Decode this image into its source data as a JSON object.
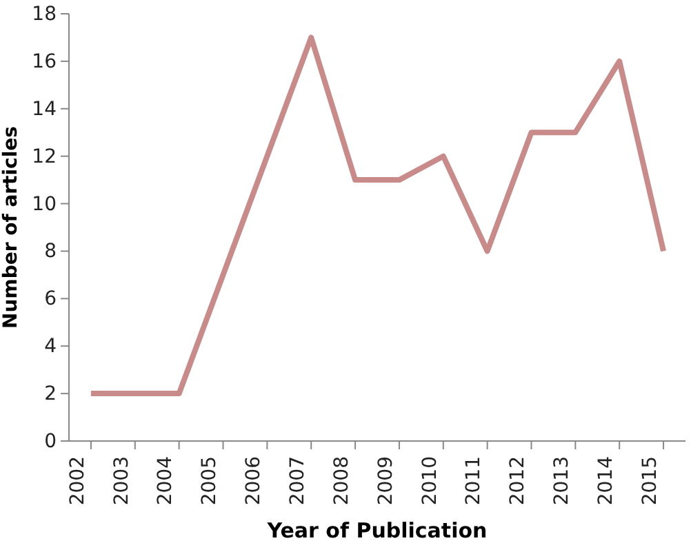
{
  "chart_data": {
    "type": "line",
    "xlabel": "Year of Publication",
    "ylabel": "Number of articles",
    "categories": [
      "2002",
      "2003",
      "2004",
      "2005",
      "2006",
      "2007",
      "2008",
      "2009",
      "2010",
      "2011",
      "2012",
      "2013",
      "2014",
      "2015"
    ],
    "series": [
      {
        "color": "#c98a8a",
        "values": [
          2,
          2,
          2,
          7,
          12,
          17,
          11,
          11,
          12,
          8,
          13,
          13,
          16,
          8
        ]
      }
    ],
    "ylim": [
      0,
      18
    ],
    "yticks": [
      0,
      2,
      4,
      6,
      8,
      10,
      12,
      14,
      16,
      18
    ],
    "grid": false,
    "marker": "none",
    "line_style": "solid"
  }
}
